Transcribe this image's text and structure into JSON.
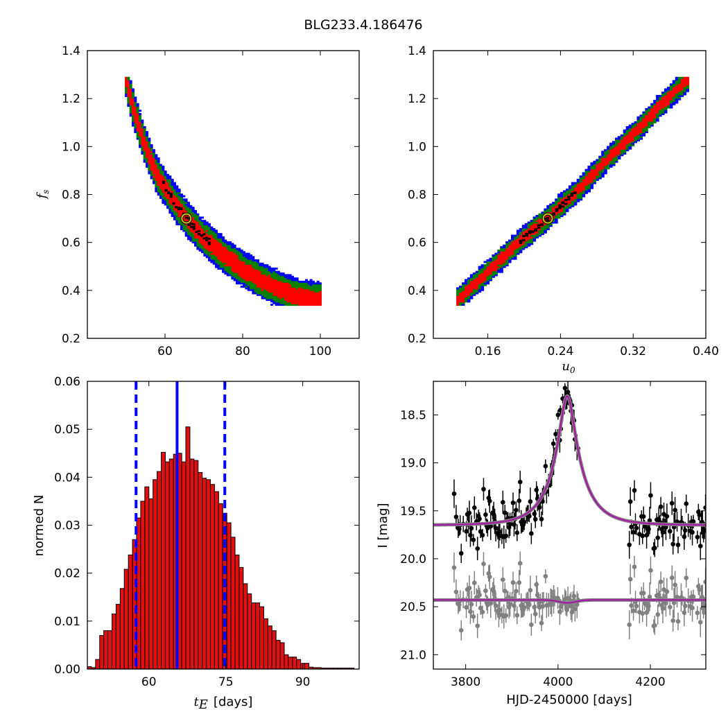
{
  "figure": {
    "title": "BLG233.4.186476"
  },
  "chart_data": [
    {
      "type": "heatmap",
      "panel": "top-left",
      "xlabel": "",
      "ylabel_main": "f",
      "ylabel_sub": "s",
      "xlim": [
        40,
        110
      ],
      "ylim": [
        0.2,
        1.4
      ],
      "xticks": [
        60,
        80,
        100
      ],
      "yticks": [
        0.2,
        0.4,
        0.6,
        0.8,
        1.0,
        1.2,
        1.4
      ],
      "xtick_labels": [
        "60",
        "80",
        "100"
      ],
      "ytick_labels": [
        "0.2",
        "0.4",
        "0.6",
        "0.8",
        "1.0",
        "1.2",
        "1.4"
      ],
      "band": {
        "centerline": [
          [
            50,
            1.28
          ],
          [
            52,
            1.15
          ],
          [
            55,
            1.0
          ],
          [
            58,
            0.88
          ],
          [
            62,
            0.78
          ],
          [
            66,
            0.69
          ],
          [
            70,
            0.62
          ],
          [
            75,
            0.55
          ],
          [
            80,
            0.49
          ],
          [
            85,
            0.44
          ],
          [
            90,
            0.4
          ],
          [
            95,
            0.37
          ],
          [
            100,
            0.36
          ]
        ],
        "halfwidth_blue": 0.075,
        "halfwidth_green": 0.06,
        "halfwidth_red": 0.035
      },
      "best_fit": [
        65.5,
        0.7
      ],
      "colors": {
        "outer": "#0000ff",
        "middle": "#008000",
        "inner": "#ff0000",
        "core": "#000000",
        "marker_edge": "#c8c800"
      }
    },
    {
      "type": "heatmap",
      "panel": "top-right",
      "xlabel_main": "u",
      "xlabel_sub": "0",
      "ylabel": "",
      "xlim": [
        0.1,
        0.4
      ],
      "ylim": [
        0.2,
        1.4
      ],
      "xticks": [
        0.16,
        0.24,
        0.32,
        0.4
      ],
      "yticks": [
        0.2,
        0.4,
        0.6,
        0.8,
        1.0,
        1.2,
        1.4
      ],
      "xtick_labels": [
        "0.16",
        "0.24",
        "0.32",
        "0.40"
      ],
      "ytick_labels": [
        "0.2",
        "0.4",
        "0.6",
        "0.8",
        "1.0",
        "1.2",
        "1.4"
      ],
      "band": {
        "centerline": [
          [
            0.127,
            0.36
          ],
          [
            0.15,
            0.44
          ],
          [
            0.18,
            0.55
          ],
          [
            0.2,
            0.62
          ],
          [
            0.226,
            0.7
          ],
          [
            0.26,
            0.82
          ],
          [
            0.29,
            0.94
          ],
          [
            0.32,
            1.05
          ],
          [
            0.35,
            1.17
          ],
          [
            0.38,
            1.28
          ]
        ],
        "halfwidth_blue": 0.05,
        "halfwidth_green": 0.04,
        "halfwidth_red": 0.022
      },
      "best_fit": [
        0.226,
        0.7
      ],
      "colors": {
        "outer": "#0000ff",
        "middle": "#008000",
        "inner": "#ff0000",
        "core": "#000000",
        "marker_edge": "#c8c800"
      }
    },
    {
      "type": "bar",
      "panel": "bottom-left",
      "xlabel_main": "t",
      "xlabel_sub": "E",
      "xlabel_suffix": "[days]",
      "ylabel": "normed N",
      "xlim": [
        48,
        101
      ],
      "ylim": [
        0,
        0.06
      ],
      "xticks": [
        60,
        75,
        90
      ],
      "xtick_labels": [
        "60",
        "75",
        "90"
      ],
      "yticks": [
        0,
        0.01,
        0.02,
        0.03,
        0.04,
        0.05,
        0.06
      ],
      "ytick_labels": [
        "0.00",
        "0.01",
        "0.02",
        "0.03",
        "0.04",
        "0.05",
        "0.06"
      ],
      "bin_start": 48,
      "bin_width": 0.8,
      "values": [
        0.0005,
        0.0003,
        0.002,
        0.007,
        0.008,
        0.008,
        0.0115,
        0.0135,
        0.0168,
        0.0208,
        0.0238,
        0.027,
        0.0315,
        0.035,
        0.038,
        0.0355,
        0.0395,
        0.0412,
        0.0452,
        0.0432,
        0.0438,
        0.0448,
        0.045,
        0.0432,
        0.0505,
        0.0438,
        0.0435,
        0.041,
        0.0398,
        0.0395,
        0.0385,
        0.037,
        0.0345,
        0.0325,
        0.0305,
        0.0275,
        0.0238,
        0.0212,
        0.0178,
        0.0157,
        0.0138,
        0.0138,
        0.013,
        0.0105,
        0.009,
        0.008,
        0.006,
        0.0055,
        0.003,
        0.0025,
        0.0025,
        0.002,
        0.0012,
        0.0012,
        0.0004,
        0.0003,
        0.0003,
        0.0002,
        0.0002,
        0.0002,
        0.0002,
        0.0002,
        0.0002,
        0.0002,
        0.0002
      ],
      "median": 65.5,
      "lower": 57.5,
      "upper": 74.8,
      "colors": {
        "bar": "#e01010",
        "edge": "#000000",
        "line": "#0000ff"
      }
    },
    {
      "type": "scatter",
      "panel": "bottom-right",
      "xlabel": "HJD-2450000 [days]",
      "ylabel": "I [mag]",
      "xlim": [
        3730,
        4320
      ],
      "ylim": [
        21.15,
        18.15
      ],
      "xticks": [
        3800,
        4000,
        4200
      ],
      "xtick_labels": [
        "3800",
        "4000",
        "4200"
      ],
      "yticks": [
        18.5,
        19.0,
        19.5,
        20.0,
        20.5,
        21.0
      ],
      "ytick_labels": [
        "18.5",
        "19.0",
        "19.5",
        "20.0",
        "20.5",
        "21.0"
      ],
      "model": {
        "t0": 4020,
        "u0": 0.226,
        "tE": 65.5,
        "I_base": 19.65,
        "fs": 0.7,
        "residual_offset": 20.44
      },
      "peak_points": [
        [
          4010,
          18.33
        ],
        [
          4015,
          18.22
        ],
        [
          4020,
          18.3
        ],
        [
          4025,
          18.38
        ],
        [
          4030,
          18.4
        ],
        [
          3995,
          18.7
        ],
        [
          3990,
          18.8
        ],
        [
          4000,
          18.5
        ],
        [
          4005,
          18.45
        ]
      ],
      "seasons": [
        [
          3775,
          4045
        ],
        [
          4150,
          4320
        ]
      ],
      "colors": {
        "data": "#000000",
        "residual": "#808080",
        "model": "#a020a0",
        "model_shadow": "#888888"
      }
    }
  ]
}
